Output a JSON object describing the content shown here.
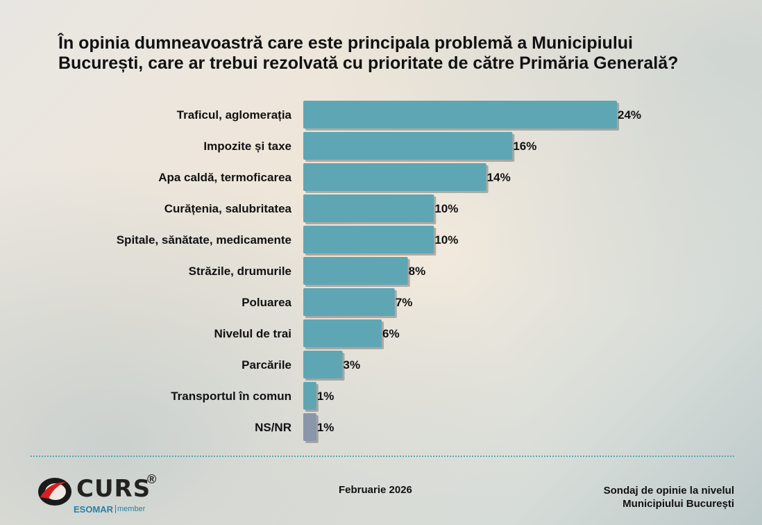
{
  "title": "În opinia dumneavoastră care este principala problemă a Municipiului București, care ar trebui rezolvată cu prioritate de către Primăria Generală?",
  "chart_data": {
    "type": "bar",
    "orientation": "horizontal",
    "title": "În opinia dumneavoastră care este principala problemă a Municipiului București, care ar trebui rezolvată cu prioritate de către Primăria Generală?",
    "categories": [
      "Traficul, aglomerația",
      "Impozite și taxe",
      "Apa caldă, termoficarea",
      "Curățenia, salubritatea",
      "Spitale, sănătate, medicamente",
      "Străzile, drumurile",
      "Poluarea",
      "Nivelul de trai",
      "Parcările",
      "Transportul în comun",
      "NS/NR"
    ],
    "values": [
      24,
      16,
      14,
      10,
      10,
      8,
      7,
      6,
      3,
      1,
      1
    ],
    "labels": [
      "24%",
      "16%",
      "14%",
      "10%",
      "10%",
      "8%",
      "7%",
      "6%",
      "3%",
      "1%",
      "1%"
    ],
    "xlim": [
      0,
      24
    ],
    "unit": "%",
    "colors": {
      "bar": "#5fa6b4",
      "bar_nsnr": "#8a97ab",
      "shadow": "rgba(60,60,60,0.35)"
    }
  },
  "footer": {
    "date": "Februarie 2026",
    "source_line1": "Sondaj de opinie la nivelul",
    "source_line2": "Municipiului București"
  },
  "logo": {
    "name": "CURS",
    "registered": "®",
    "sub": "ESOMAR",
    "member": "member",
    "accent": "#d62020"
  }
}
